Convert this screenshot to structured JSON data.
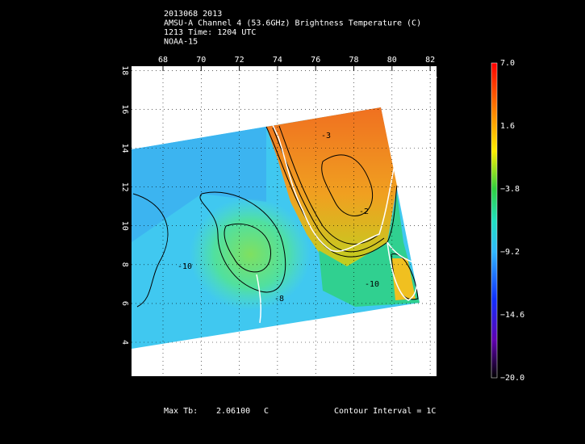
{
  "header": {
    "lines": [
      "2013068 2013",
      "AMSU-A Channel 4 (53.6GHz) Brightness Temperature (C)",
      "1213 Time: 1204 UTC",
      "NOAA-15"
    ]
  },
  "map": {
    "lon_labels": [
      "68",
      "70",
      "72",
      "74",
      "76",
      "78",
      "80",
      "82"
    ],
    "lat_labels": [
      "4",
      "6",
      "8",
      "10",
      "12",
      "14",
      "16",
      "18"
    ],
    "contour_labels": [
      "-3",
      "-2",
      "-10",
      "-10",
      "-8"
    ]
  },
  "colorbar": {
    "labels": [
      "7.0",
      "1.6",
      "−3.8",
      "−9.2",
      "−14.6",
      "−20.0"
    ]
  },
  "footer": {
    "max_label": "Max Tb:",
    "max_value": "2.06100",
    "max_unit": "C",
    "contour_interval": "Contour Interval = 1C"
  }
}
